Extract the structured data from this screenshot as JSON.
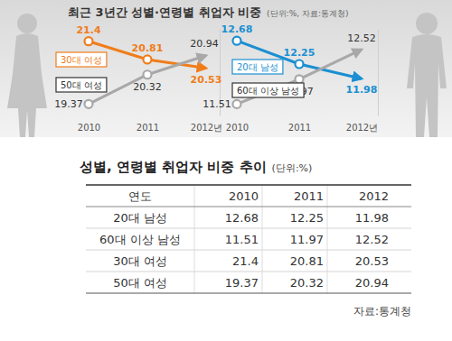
{
  "header": {
    "title": "최근 3년간 성별·연령별 취업자 비중",
    "note": "(단위:%, 자료:통계청)"
  },
  "chart_data": [
    {
      "type": "line",
      "categories": [
        "2010",
        "2011",
        "2012년"
      ],
      "series": [
        {
          "name": "30대 여성",
          "color": "#f07d1a",
          "values": [
            21.4,
            20.81,
            20.53
          ],
          "marker": "circle"
        },
        {
          "name": "50대 여성",
          "color": "#a8a8a8",
          "values": [
            19.37,
            20.32,
            20.94
          ],
          "marker": "circle"
        }
      ],
      "ylim": [
        19,
        21.8
      ],
      "data_labels": true,
      "tick_labels": "x",
      "grid": false
    },
    {
      "type": "line",
      "categories": [
        "2010",
        "2011",
        "2012년"
      ],
      "series": [
        {
          "name": "20대 남성",
          "color": "#1b8fd2",
          "values": [
            12.68,
            12.25,
            11.98
          ],
          "marker": "circle"
        },
        {
          "name": "60대 이상 남성",
          "color": "#a8a8a8",
          "values": [
            11.51,
            11.97,
            12.52
          ],
          "marker": "circle"
        }
      ],
      "ylim": [
        11.3,
        12.9
      ],
      "data_labels": true,
      "tick_labels": "x",
      "grid": false
    }
  ],
  "table": {
    "title": "성별, 연령별 취업자 비중 추이",
    "unit": "(단위:%)",
    "header": [
      "연도",
      "2010",
      "2011",
      "2012"
    ],
    "rows": [
      [
        "20대 남성",
        12.68,
        12.25,
        11.98
      ],
      [
        "60대 이상 남성",
        11.51,
        11.97,
        12.52
      ],
      [
        "30대 여성",
        21.4,
        20.81,
        20.53
      ],
      [
        "50대 여성",
        19.37,
        20.32,
        20.94
      ]
    ],
    "source": "자료:통계청"
  }
}
